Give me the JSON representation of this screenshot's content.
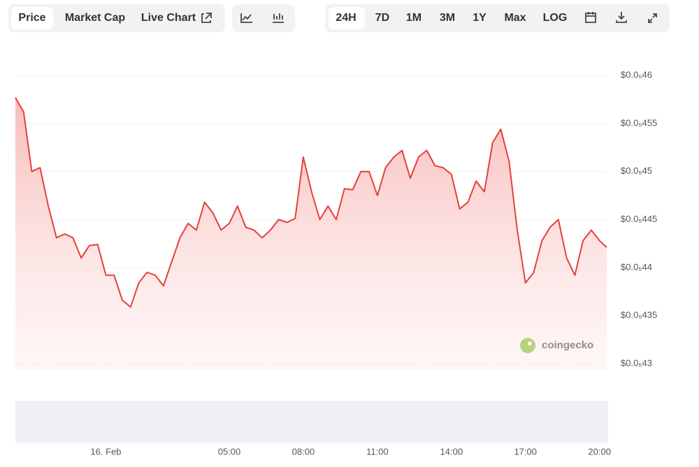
{
  "toolbar": {
    "tabs": [
      "Price",
      "Market Cap",
      "Live Chart"
    ],
    "ranges": [
      "24H",
      "7D",
      "1M",
      "3M",
      "1Y",
      "Max",
      "LOG"
    ]
  },
  "watermark": "coingecko",
  "chart_data": {
    "type": "area",
    "color": "#e5403a",
    "categories": [
      null,
      null,
      null,
      null,
      null,
      null,
      null,
      null,
      null,
      null,
      null,
      "16. Feb",
      null,
      null,
      null,
      null,
      null,
      null,
      null,
      null,
      null,
      null,
      null,
      null,
      null,
      null,
      "05:00",
      null,
      null,
      null,
      null,
      null,
      null,
      null,
      null,
      "08:00",
      null,
      null,
      null,
      null,
      null,
      null,
      null,
      null,
      "11:00",
      null,
      null,
      null,
      null,
      null,
      null,
      null,
      null,
      "14:00",
      null,
      null,
      null,
      null,
      null,
      null,
      null,
      null,
      "17:00",
      null,
      null,
      null,
      null,
      null,
      null,
      null,
      null,
      "20:00",
      null
    ],
    "values": [
      4.577e-07,
      4.562e-07,
      4.5e-07,
      4.504e-07,
      4.464e-07,
      4.431e-07,
      4.435e-07,
      4.431e-07,
      4.41e-07,
      4.423e-07,
      4.424e-07,
      4.392e-07,
      4.392e-07,
      4.366e-07,
      4.359e-07,
      4.384e-07,
      4.395e-07,
      4.392e-07,
      4.381e-07,
      4.406e-07,
      4.431e-07,
      4.446e-07,
      4.439e-07,
      4.468e-07,
      4.457e-07,
      4.439e-07,
      4.446e-07,
      4.464e-07,
      4.442e-07,
      4.439e-07,
      4.431e-07,
      4.439e-07,
      4.45e-07,
      4.447e-07,
      4.451e-07,
      4.515e-07,
      4.479e-07,
      4.45e-07,
      4.464e-07,
      4.45e-07,
      4.482e-07,
      4.481e-07,
      4.5e-07,
      4.5e-07,
      4.475e-07,
      4.504e-07,
      4.515e-07,
      4.522e-07,
      4.493e-07,
      4.515e-07,
      4.522e-07,
      4.506e-07,
      4.504e-07,
      4.497e-07,
      4.461e-07,
      4.468e-07,
      4.49e-07,
      4.479e-07,
      4.53e-07,
      4.544e-07,
      4.511e-07,
      4.439e-07,
      4.384e-07,
      4.395e-07,
      4.428e-07,
      4.442e-07,
      4.45e-07,
      4.41e-07,
      4.392e-07,
      4.428e-07,
      4.439e-07,
      4.428e-07,
      4.421e-07
    ],
    "ylim": [
      4.3e-07,
      4.6e-07
    ],
    "yticks": [
      {
        "value": 4.3e-07,
        "label": "$0.0₅43"
      },
      {
        "value": 4.35e-07,
        "label": "$0.0₅435"
      },
      {
        "value": 4.4e-07,
        "label": "$0.0₅44"
      },
      {
        "value": 4.45e-07,
        "label": "$0.0₅445"
      },
      {
        "value": 4.5e-07,
        "label": "$0.0₅45"
      },
      {
        "value": 4.55e-07,
        "label": "$0.0₅455"
      },
      {
        "value": 4.6e-07,
        "label": "$0.0₅46"
      }
    ],
    "grid": true
  }
}
